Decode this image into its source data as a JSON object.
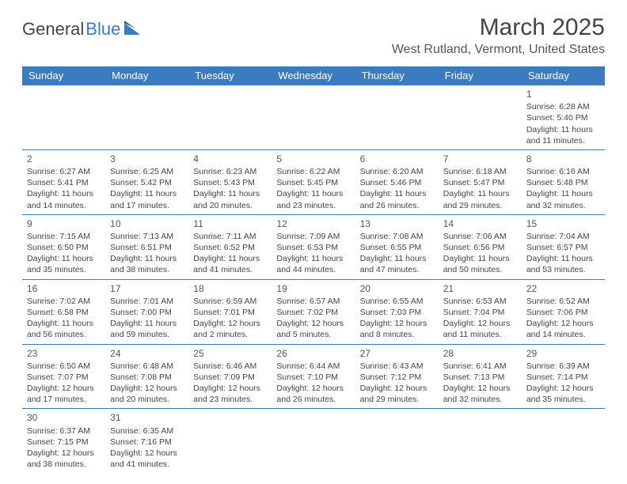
{
  "logo": {
    "text1": "General",
    "text2": "Blue"
  },
  "title": "March 2025",
  "location": "West Rutland, Vermont, United States",
  "header_bg": "#3b7bbf",
  "header_fg": "#ffffff",
  "border_color": "#3b7bbf",
  "days": [
    "Sunday",
    "Monday",
    "Tuesday",
    "Wednesday",
    "Thursday",
    "Friday",
    "Saturday"
  ],
  "weeks": [
    [
      null,
      null,
      null,
      null,
      null,
      null,
      {
        "n": "1",
        "sr": "6:28 AM",
        "ss": "5:40 PM",
        "dl": "11 hours and 11 minutes."
      }
    ],
    [
      {
        "n": "2",
        "sr": "6:27 AM",
        "ss": "5:41 PM",
        "dl": "11 hours and 14 minutes."
      },
      {
        "n": "3",
        "sr": "6:25 AM",
        "ss": "5:42 PM",
        "dl": "11 hours and 17 minutes."
      },
      {
        "n": "4",
        "sr": "6:23 AM",
        "ss": "5:43 PM",
        "dl": "11 hours and 20 minutes."
      },
      {
        "n": "5",
        "sr": "6:22 AM",
        "ss": "5:45 PM",
        "dl": "11 hours and 23 minutes."
      },
      {
        "n": "6",
        "sr": "6:20 AM",
        "ss": "5:46 PM",
        "dl": "11 hours and 26 minutes."
      },
      {
        "n": "7",
        "sr": "6:18 AM",
        "ss": "5:47 PM",
        "dl": "11 hours and 29 minutes."
      },
      {
        "n": "8",
        "sr": "6:16 AM",
        "ss": "5:48 PM",
        "dl": "11 hours and 32 minutes."
      }
    ],
    [
      {
        "n": "9",
        "sr": "7:15 AM",
        "ss": "6:50 PM",
        "dl": "11 hours and 35 minutes."
      },
      {
        "n": "10",
        "sr": "7:13 AM",
        "ss": "6:51 PM",
        "dl": "11 hours and 38 minutes."
      },
      {
        "n": "11",
        "sr": "7:11 AM",
        "ss": "6:52 PM",
        "dl": "11 hours and 41 minutes."
      },
      {
        "n": "12",
        "sr": "7:09 AM",
        "ss": "6:53 PM",
        "dl": "11 hours and 44 minutes."
      },
      {
        "n": "13",
        "sr": "7:08 AM",
        "ss": "6:55 PM",
        "dl": "11 hours and 47 minutes."
      },
      {
        "n": "14",
        "sr": "7:06 AM",
        "ss": "6:56 PM",
        "dl": "11 hours and 50 minutes."
      },
      {
        "n": "15",
        "sr": "7:04 AM",
        "ss": "6:57 PM",
        "dl": "11 hours and 53 minutes."
      }
    ],
    [
      {
        "n": "16",
        "sr": "7:02 AM",
        "ss": "6:58 PM",
        "dl": "11 hours and 56 minutes."
      },
      {
        "n": "17",
        "sr": "7:01 AM",
        "ss": "7:00 PM",
        "dl": "11 hours and 59 minutes."
      },
      {
        "n": "18",
        "sr": "6:59 AM",
        "ss": "7:01 PM",
        "dl": "12 hours and 2 minutes."
      },
      {
        "n": "19",
        "sr": "6:57 AM",
        "ss": "7:02 PM",
        "dl": "12 hours and 5 minutes."
      },
      {
        "n": "20",
        "sr": "6:55 AM",
        "ss": "7:03 PM",
        "dl": "12 hours and 8 minutes."
      },
      {
        "n": "21",
        "sr": "6:53 AM",
        "ss": "7:04 PM",
        "dl": "12 hours and 11 minutes."
      },
      {
        "n": "22",
        "sr": "6:52 AM",
        "ss": "7:06 PM",
        "dl": "12 hours and 14 minutes."
      }
    ],
    [
      {
        "n": "23",
        "sr": "6:50 AM",
        "ss": "7:07 PM",
        "dl": "12 hours and 17 minutes."
      },
      {
        "n": "24",
        "sr": "6:48 AM",
        "ss": "7:08 PM",
        "dl": "12 hours and 20 minutes."
      },
      {
        "n": "25",
        "sr": "6:46 AM",
        "ss": "7:09 PM",
        "dl": "12 hours and 23 minutes."
      },
      {
        "n": "26",
        "sr": "6:44 AM",
        "ss": "7:10 PM",
        "dl": "12 hours and 26 minutes."
      },
      {
        "n": "27",
        "sr": "6:43 AM",
        "ss": "7:12 PM",
        "dl": "12 hours and 29 minutes."
      },
      {
        "n": "28",
        "sr": "6:41 AM",
        "ss": "7:13 PM",
        "dl": "12 hours and 32 minutes."
      },
      {
        "n": "29",
        "sr": "6:39 AM",
        "ss": "7:14 PM",
        "dl": "12 hours and 35 minutes."
      }
    ],
    [
      {
        "n": "30",
        "sr": "6:37 AM",
        "ss": "7:15 PM",
        "dl": "12 hours and 38 minutes."
      },
      {
        "n": "31",
        "sr": "6:35 AM",
        "ss": "7:16 PM",
        "dl": "12 hours and 41 minutes."
      },
      null,
      null,
      null,
      null,
      null
    ]
  ],
  "labels": {
    "sunrise": "Sunrise:",
    "sunset": "Sunset:",
    "daylight": "Daylight:"
  }
}
